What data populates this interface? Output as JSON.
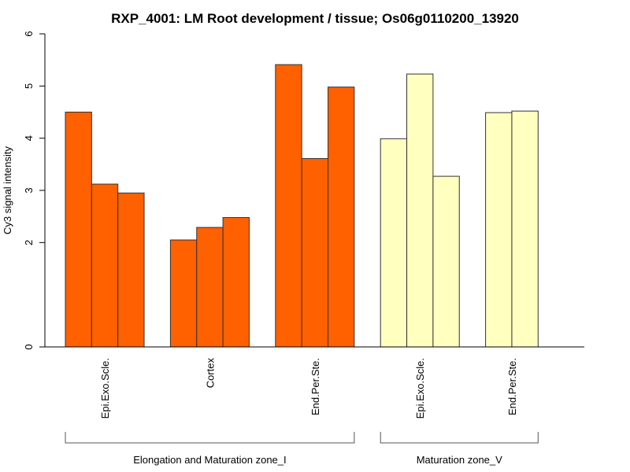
{
  "chart_data": {
    "type": "bar",
    "title": "RXP_4001: LM Root development / tissue; Os06g0110200_13920",
    "xlabel": "",
    "ylabel": "Cy3 signal intensity",
    "ylim": [
      0,
      6
    ],
    "yticks": [
      0,
      2,
      3,
      4,
      5,
      6
    ],
    "grid": false,
    "legend": "none",
    "groups": [
      {
        "name": "Elongation and Maturation zone_I",
        "color": "#FF6000",
        "tissues": [
          {
            "label": "Epi.Exo.Scle.",
            "values": [
              4.5,
              3.12,
              2.95
            ]
          },
          {
            "label": "Cortex",
            "values": [
              2.05,
              2.29,
              2.48
            ]
          },
          {
            "label": "End.Per.Ste.",
            "values": [
              5.41,
              3.61,
              4.98
            ]
          }
        ]
      },
      {
        "name": "Maturation zone_V",
        "color": "#FFFFC0",
        "tissues": [
          {
            "label": "Epi.Exo.Scle.",
            "values": [
              3.99,
              5.23,
              3.27
            ]
          },
          {
            "label": "End.Per.Ste.",
            "values": [
              4.49,
              4.52
            ]
          }
        ]
      }
    ]
  }
}
